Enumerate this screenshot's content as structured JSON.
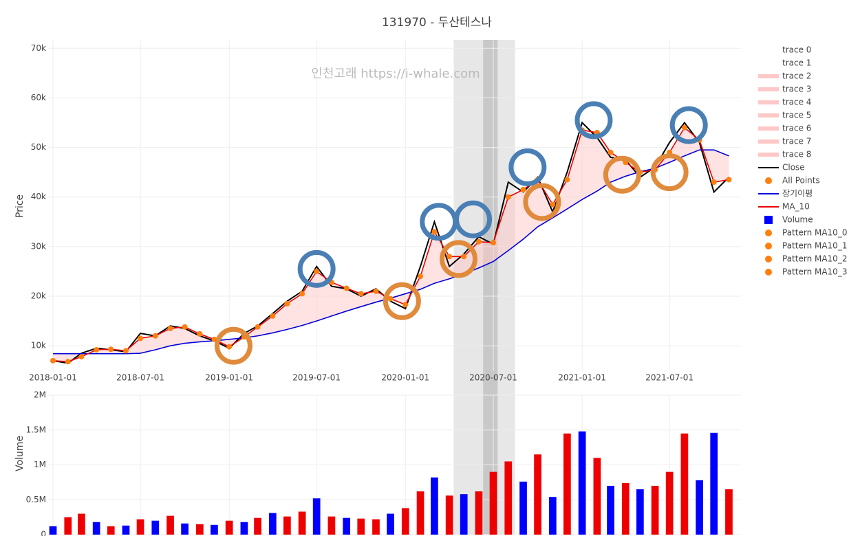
{
  "chart_data": {
    "type": "line",
    "title": "131970 - 두산테스나",
    "watermark": "인천고래 https://i-whale.com",
    "y_label": "Price",
    "y2_label": "Volume",
    "x": [
      "2018-01-01",
      "2018-02-01",
      "2018-03-01",
      "2018-04-01",
      "2018-05-01",
      "2018-06-01",
      "2018-07-01",
      "2018-08-01",
      "2018-09-01",
      "2018-10-01",
      "2018-11-01",
      "2018-12-01",
      "2019-01-01",
      "2019-02-01",
      "2019-03-01",
      "2019-04-01",
      "2019-05-01",
      "2019-06-01",
      "2019-07-01",
      "2019-08-01",
      "2019-09-01",
      "2019-10-01",
      "2019-11-01",
      "2019-12-01",
      "2020-01-01",
      "2020-02-01",
      "2020-03-01",
      "2020-04-01",
      "2020-05-01",
      "2020-06-01",
      "2020-07-01",
      "2020-08-01",
      "2020-09-01",
      "2020-10-01",
      "2020-11-01",
      "2020-12-01",
      "2021-01-01",
      "2021-02-01",
      "2021-03-01",
      "2021-04-01",
      "2021-05-01",
      "2021-06-01",
      "2021-07-01",
      "2021-08-01",
      "2021-09-01",
      "2021-10-01",
      "2021-11-01"
    ],
    "series": [
      {
        "name": "Close",
        "color": "#000000",
        "values": [
          7000,
          6500,
          8500,
          9500,
          9200,
          8800,
          12500,
          12000,
          14000,
          13500,
          12000,
          11000,
          9500,
          12500,
          14000,
          16500,
          19000,
          21000,
          26000,
          22000,
          21500,
          20000,
          21500,
          19000,
          17500,
          26000,
          35000,
          26000,
          28500,
          32000,
          30500,
          43000,
          41000,
          44000,
          37000,
          45000,
          55000,
          52000,
          48000,
          47500,
          44000,
          46000,
          51000,
          55000,
          51000,
          41000,
          44000
        ]
      },
      {
        "name": "장기이평",
        "color": "#0000dd",
        "values": [
          8400,
          8400,
          8400,
          8400,
          8400,
          8400,
          8500,
          9200,
          10000,
          10500,
          10800,
          11000,
          11300,
          11600,
          12000,
          12600,
          13300,
          14100,
          15000,
          16000,
          17000,
          17900,
          18800,
          19600,
          20500,
          21400,
          22600,
          23500,
          24500,
          25700,
          27000,
          29200,
          31500,
          34000,
          35800,
          37600,
          39500,
          41200,
          43000,
          44200,
          45100,
          45800,
          47000,
          48300,
          49500,
          49500,
          48300
        ]
      },
      {
        "name": "MA_10",
        "color": "#ee0000",
        "values": [
          7000,
          6800,
          7800,
          9200,
          9300,
          9000,
          11500,
          12000,
          13500,
          13800,
          12400,
          11300,
          9800,
          11800,
          13800,
          16000,
          18500,
          20500,
          25000,
          22800,
          21600,
          20500,
          21000,
          19500,
          18300,
          24000,
          33000,
          28000,
          28000,
          31000,
          30800,
          40000,
          41500,
          43500,
          38500,
          43500,
          53500,
          53000,
          49000,
          47000,
          45000,
          45500,
          49000,
          54000,
          51500,
          43000,
          43500
        ]
      },
      {
        "name": "Volume",
        "axis": "y2",
        "color": "#0000ff",
        "values": [
          120000,
          250000,
          300000,
          180000,
          120000,
          130000,
          220000,
          200000,
          270000,
          160000,
          150000,
          140000,
          200000,
          180000,
          240000,
          310000,
          260000,
          330000,
          520000,
          260000,
          240000,
          230000,
          220000,
          300000,
          380000,
          620000,
          820000,
          560000,
          580000,
          620000,
          900000,
          1050000,
          760000,
          1150000,
          540000,
          1450000,
          1480000,
          1100000,
          700000,
          740000,
          650000,
          700000,
          900000,
          1450000,
          780000,
          1460000,
          650000
        ],
        "colors": [
          "#0000ff",
          "#ee0000",
          "#ee0000",
          "#0000ff",
          "#ee0000",
          "#0000ff",
          "#ee0000",
          "#0000ff",
          "#ee0000",
          "#0000ff",
          "#ee0000",
          "#0000ff",
          "#ee0000",
          "#0000ff",
          "#ee0000",
          "#0000ff",
          "#ee0000",
          "#ee0000",
          "#0000ff",
          "#ee0000",
          "#0000ff",
          "#ee0000",
          "#ee0000",
          "#0000ff",
          "#ee0000",
          "#ee0000",
          "#0000ff",
          "#ee0000",
          "#0000ff",
          "#ee0000",
          "#ee0000",
          "#ee0000",
          "#0000ff",
          "#ee0000",
          "#0000ff",
          "#ee0000",
          "#0000ff",
          "#ee0000",
          "#0000ff",
          "#ee0000",
          "#0000ff",
          "#ee0000",
          "#ee0000",
          "#ee0000",
          "#0000ff",
          "#0000ff",
          "#ee0000"
        ]
      }
    ],
    "peak_circles": {
      "color": "#4a7fb5",
      "x": [
        "2019-07-01",
        "2020-03-10",
        "2020-05-20",
        "2020-09-10",
        "2021-01-25",
        "2021-08-10"
      ],
      "y": [
        25500,
        35000,
        35500,
        46000,
        55500,
        54500
      ]
    },
    "trough_circles": {
      "color": "#e08a3c",
      "x": [
        "2019-01-10",
        "2019-12-25",
        "2020-04-20",
        "2020-10-10",
        "2021-03-25",
        "2021-07-01"
      ],
      "y": [
        10000,
        19000,
        27500,
        39000,
        44500,
        45000
      ]
    },
    "shapes": [
      {
        "x0": "2020-04-10",
        "x1": "2020-08-15",
        "color": "#dddddd"
      },
      {
        "x0": "2020-06-10",
        "x1": "2020-07-10",
        "color": "#bbbbbb"
      }
    ],
    "xlim": [
      "2017-12-22",
      "2021-11-26"
    ],
    "xticks": [
      "2018-01-01",
      "2018-07-01",
      "2019-01-01",
      "2019-07-01",
      "2020-01-01",
      "2020-07-01",
      "2021-01-01",
      "2021-07-01"
    ],
    "ylim": [
      4900,
      71700
    ],
    "yticks": [
      {
        "value": 10000,
        "label": "10k"
      },
      {
        "value": 20000,
        "label": "20k"
      },
      {
        "value": 30000,
        "label": "30k"
      },
      {
        "value": 40000,
        "label": "40k"
      },
      {
        "value": 50000,
        "label": "50k"
      },
      {
        "value": 60000,
        "label": "60k"
      },
      {
        "value": 70000,
        "label": "70k"
      }
    ],
    "y2lim": [
      0,
      2000000
    ],
    "y2ticks": [
      0,
      {
        "value": 500000,
        "label": "0.5M"
      },
      {
        "value": 1000000,
        "label": "1M"
      },
      {
        "value": 1500000,
        "label": "1.5M"
      },
      {
        "value": 2000000,
        "label": "2M"
      }
    ],
    "grid": true,
    "legend_position": "right",
    "legend": [
      {
        "name": "trace 0",
        "symbol": "none",
        "color": "#ffffff"
      },
      {
        "name": "trace 1",
        "symbol": "none",
        "color": "#ffffff"
      },
      {
        "name": "trace 2",
        "symbol": "band",
        "color": "#ffc8c8"
      },
      {
        "name": "trace 3",
        "symbol": "band",
        "color": "#ffc8c8"
      },
      {
        "name": "trace 4",
        "symbol": "band",
        "color": "#ffc8c8"
      },
      {
        "name": "trace 5",
        "symbol": "band",
        "color": "#ffc8c8"
      },
      {
        "name": "trace 6",
        "symbol": "band",
        "color": "#ffc8c8"
      },
      {
        "name": "trace 7",
        "symbol": "band",
        "color": "#ffc8c8"
      },
      {
        "name": "trace 8",
        "symbol": "band",
        "color": "#ffc8c8"
      },
      {
        "name": "Close",
        "symbol": "line",
        "color": "#000000"
      },
      {
        "name": "All Points",
        "symbol": "dot",
        "color": "#ff7f0e"
      },
      {
        "name": "장기이평",
        "symbol": "line",
        "color": "#0000dd"
      },
      {
        "name": "MA_10",
        "symbol": "line",
        "color": "#ee0000"
      },
      {
        "name": "Volume",
        "symbol": "square",
        "color": "#0000ff"
      },
      {
        "name": "Pattern MA10_0",
        "symbol": "dot",
        "color": "#ff7f0e"
      },
      {
        "name": "Pattern MA10_1",
        "symbol": "dot",
        "color": "#ff7f0e"
      },
      {
        "name": "Pattern MA10_2",
        "symbol": "dot",
        "color": "#ff7f0e"
      },
      {
        "name": "Pattern MA10_3",
        "symbol": "dot",
        "color": "#ff7f0e"
      }
    ]
  }
}
